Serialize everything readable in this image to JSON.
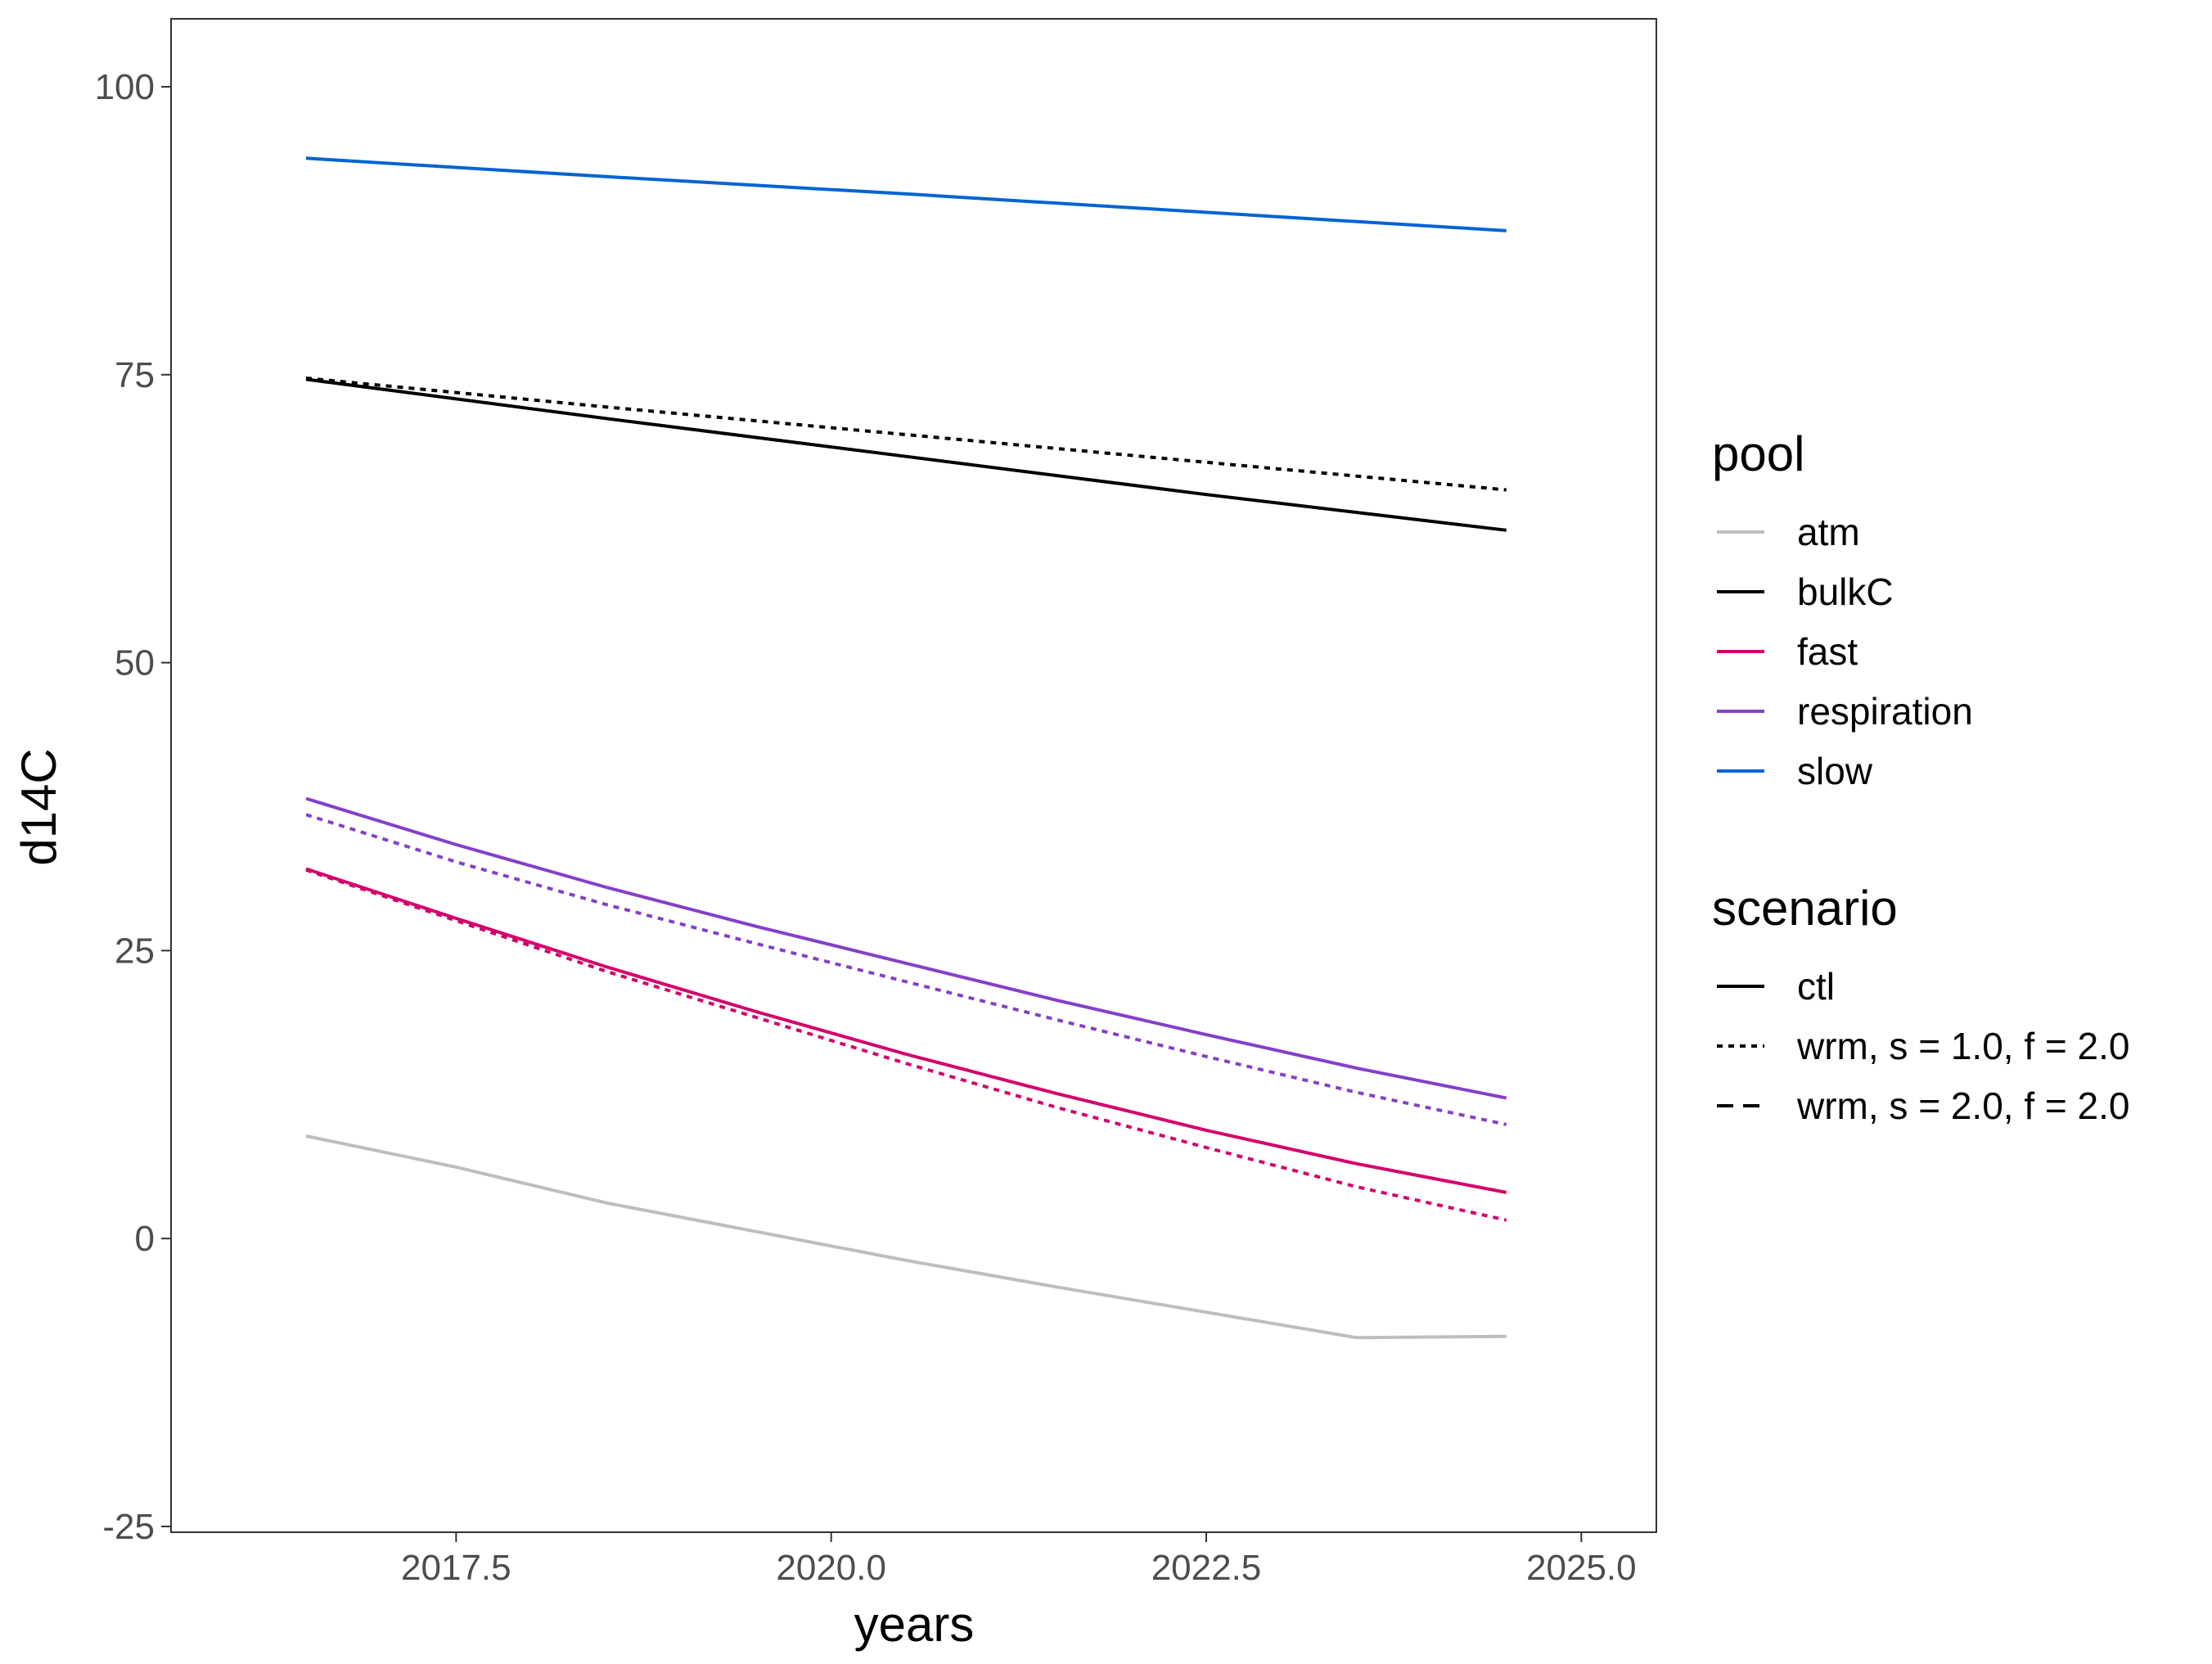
{
  "chart_data": {
    "type": "line",
    "xlabel": "years",
    "ylabel": "d14C",
    "xlim": [
      2015.6,
      2025.5
    ],
    "ylim": [
      -25.5,
      105.9
    ],
    "x_ticks": [
      2017.5,
      2020.0,
      2022.5,
      2025.0
    ],
    "x_tick_labels": [
      "2017.5",
      "2020.0",
      "2022.5",
      "2025.0"
    ],
    "y_ticks": [
      -25,
      0,
      25,
      50,
      75,
      100
    ],
    "y_tick_labels": [
      "-25",
      "0",
      "25",
      "50",
      "75",
      "100"
    ],
    "grid": false,
    "legend_placement": "right",
    "legends": [
      {
        "title": "pool",
        "kind": "color",
        "entries": [
          {
            "label": "atm",
            "color": "#bebebe"
          },
          {
            "label": "bulkC",
            "color": "#000000"
          },
          {
            "label": "fast",
            "color": "#d4006a"
          },
          {
            "label": "respiration",
            "color": "#8440c8"
          },
          {
            "label": "slow",
            "color": "#0064d2"
          }
        ]
      },
      {
        "title": "scenario",
        "kind": "linetype",
        "entries": [
          {
            "label": "ctl",
            "dash": "solid"
          },
          {
            "label": "wrm, s = 1.0, f = 2.0",
            "dash": "dotted"
          },
          {
            "label": "wrm, s = 2.0, f = 2.0",
            "dash": "dashed"
          }
        ]
      }
    ],
    "series": [
      {
        "pool": "atm",
        "scenario": "ctl",
        "color": "#bebebe",
        "dash": "solid",
        "x": [
          2016.5,
          2017.5,
          2018.5,
          2019.5,
          2020.5,
          2021.5,
          2022.5,
          2023.5,
          2024.5
        ],
        "y": [
          8.9,
          6.2,
          3.1,
          0.6,
          -1.9,
          -4.2,
          -6.4,
          -8.6,
          -8.5
        ]
      },
      {
        "pool": "bulkC",
        "scenario": "wrm, s = 1.0, f = 2.0",
        "color": "#000000",
        "dash": "dotted",
        "x": [
          2016.5,
          2018.5,
          2020.5,
          2022.5,
          2024.5
        ],
        "y": [
          74.7,
          72.2,
          69.8,
          67.4,
          65.0
        ]
      },
      {
        "pool": "bulkC",
        "scenario": "ctl",
        "color": "#000000",
        "dash": "solid",
        "x": [
          2016.5,
          2018.5,
          2020.5,
          2022.5,
          2024.5
        ],
        "y": [
          74.6,
          71.2,
          67.9,
          64.6,
          61.5
        ]
      },
      {
        "pool": "slow",
        "scenario": "ctl",
        "color": "#0064d2",
        "dash": "solid",
        "x": [
          2016.5,
          2018.5,
          2020.5,
          2022.5,
          2024.5
        ],
        "y": [
          93.8,
          92.2,
          90.7,
          89.1,
          87.5
        ]
      },
      {
        "pool": "respiration",
        "scenario": "wrm, s = 1.0, f = 2.0",
        "color": "#8440c8",
        "dash": "dotted",
        "x": [
          2016.5,
          2017.5,
          2018.5,
          2019.5,
          2020.5,
          2021.5,
          2022.5,
          2023.5,
          2024.5
        ],
        "y": [
          36.8,
          32.7,
          29.0,
          25.6,
          22.3,
          19.0,
          15.8,
          12.7,
          9.9
        ]
      },
      {
        "pool": "respiration",
        "scenario": "ctl",
        "color": "#8440c8",
        "dash": "solid",
        "x": [
          2016.5,
          2017.5,
          2018.5,
          2019.5,
          2020.5,
          2021.5,
          2022.5,
          2023.5,
          2024.5
        ],
        "y": [
          38.2,
          34.2,
          30.5,
          27.1,
          23.9,
          20.7,
          17.7,
          14.8,
          12.2
        ]
      },
      {
        "pool": "fast",
        "scenario": "wrm, s = 1.0, f = 2.0",
        "color": "#d4006a",
        "dash": "dotted",
        "x": [
          2016.5,
          2017.5,
          2018.5,
          2019.5,
          2020.5,
          2021.5,
          2022.5,
          2023.5,
          2024.5
        ],
        "y": [
          32.0,
          27.6,
          23.2,
          19.2,
          15.2,
          11.4,
          7.9,
          4.5,
          1.6
        ]
      },
      {
        "pool": "fast",
        "scenario": "ctl",
        "color": "#d4006a",
        "dash": "solid",
        "x": [
          2016.5,
          2017.5,
          2018.5,
          2019.5,
          2020.5,
          2021.5,
          2022.5,
          2023.5,
          2024.5
        ],
        "y": [
          32.1,
          27.8,
          23.6,
          19.7,
          16.0,
          12.6,
          9.4,
          6.5,
          4.0
        ]
      }
    ]
  }
}
